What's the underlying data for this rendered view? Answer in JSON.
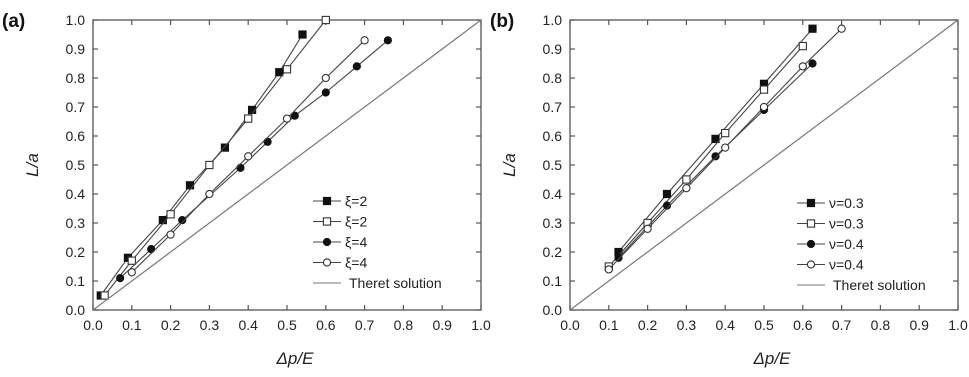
{
  "chart_data": [
    {
      "panel": "(a)",
      "type": "line",
      "xlabel": "Δp/E",
      "ylabel": "L/a",
      "xlim": [
        0,
        1.0
      ],
      "ylim": [
        0,
        1.0
      ],
      "xticks": [
        "0.0",
        "0.1",
        "0.2",
        "0.3",
        "0.4",
        "0.5",
        "0.6",
        "0.7",
        "0.8",
        "0.9",
        "1.0"
      ],
      "yticks": [
        "0.0",
        "0.1",
        "0.2",
        "0.3",
        "0.4",
        "0.5",
        "0.6",
        "0.7",
        "0.8",
        "0.9",
        "1.0"
      ],
      "legend_position": "lower-right",
      "series": [
        {
          "name": "ξ=2",
          "marker": "square-filled",
          "x": [
            0.02,
            0.09,
            0.18,
            0.25,
            0.34,
            0.41,
            0.48,
            0.54
          ],
          "y": [
            0.05,
            0.18,
            0.31,
            0.43,
            0.56,
            0.69,
            0.82,
            0.95
          ]
        },
        {
          "name": "ξ=2",
          "marker": "square-open",
          "x": [
            0.03,
            0.1,
            0.2,
            0.3,
            0.4,
            0.5,
            0.6
          ],
          "y": [
            0.05,
            0.17,
            0.33,
            0.5,
            0.66,
            0.83,
            1.0
          ]
        },
        {
          "name": "ξ=4",
          "marker": "circle-filled",
          "x": [
            0.07,
            0.15,
            0.23,
            0.38,
            0.45,
            0.52,
            0.6,
            0.68,
            0.76
          ],
          "y": [
            0.11,
            0.21,
            0.31,
            0.49,
            0.58,
            0.67,
            0.75,
            0.84,
            0.93
          ]
        },
        {
          "name": "ξ=4",
          "marker": "circle-open",
          "x": [
            0.1,
            0.2,
            0.3,
            0.4,
            0.5,
            0.6,
            0.7
          ],
          "y": [
            0.13,
            0.26,
            0.4,
            0.53,
            0.66,
            0.8,
            0.93
          ]
        },
        {
          "name": "Theret solution",
          "marker": "none",
          "x": [
            0,
            1.0
          ],
          "y": [
            0,
            1.0
          ]
        }
      ]
    },
    {
      "panel": "(b)",
      "type": "line",
      "xlabel": "Δp/E",
      "ylabel": "L/a",
      "xlim": [
        0,
        1.0
      ],
      "ylim": [
        0,
        1.0
      ],
      "xticks": [
        "0.0",
        "0.1",
        "0.2",
        "0.3",
        "0.4",
        "0.5",
        "0.6",
        "0.7",
        "0.8",
        "0.9",
        "1.0"
      ],
      "yticks": [
        "0.0",
        "0.1",
        "0.2",
        "0.3",
        "0.4",
        "0.5",
        "0.6",
        "0.7",
        "0.8",
        "0.9",
        "1.0"
      ],
      "legend_position": "lower-right",
      "series": [
        {
          "name": "ν=0.3",
          "marker": "square-filled",
          "x": [
            0.125,
            0.25,
            0.375,
            0.5,
            0.625
          ],
          "y": [
            0.2,
            0.4,
            0.59,
            0.78,
            0.97
          ]
        },
        {
          "name": "ν=0.3",
          "marker": "square-open",
          "x": [
            0.1,
            0.2,
            0.3,
            0.4,
            0.5,
            0.6
          ],
          "y": [
            0.15,
            0.3,
            0.45,
            0.61,
            0.76,
            0.91
          ]
        },
        {
          "name": "ν=0.4",
          "marker": "circle-filled",
          "x": [
            0.125,
            0.25,
            0.375,
            0.5,
            0.625
          ],
          "y": [
            0.18,
            0.36,
            0.53,
            0.69,
            0.85
          ]
        },
        {
          "name": "ν=0.4",
          "marker": "circle-open",
          "x": [
            0.1,
            0.2,
            0.3,
            0.4,
            0.5,
            0.6,
            0.7
          ],
          "y": [
            0.14,
            0.28,
            0.42,
            0.56,
            0.7,
            0.84,
            0.97
          ]
        },
        {
          "name": "Theret solution",
          "marker": "none",
          "x": [
            0,
            1.0
          ],
          "y": [
            0,
            1.0
          ]
        }
      ]
    }
  ]
}
